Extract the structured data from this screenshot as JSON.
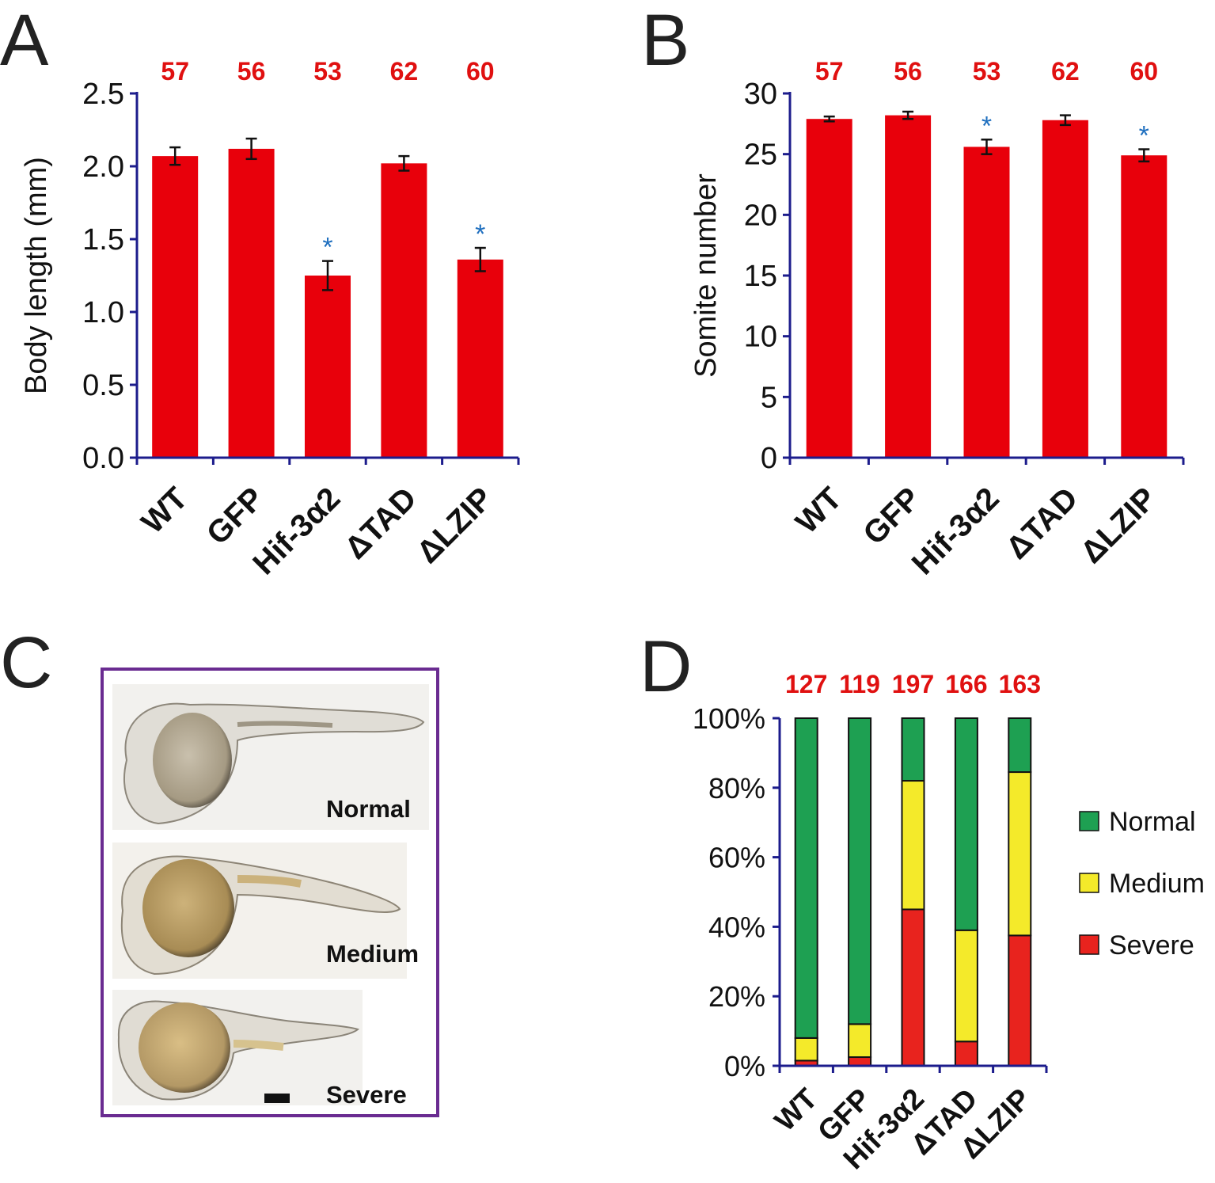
{
  "panels": {
    "a": "A",
    "b": "B",
    "c": "C",
    "d": "D"
  },
  "colors": {
    "bar": "#e8000b",
    "axis": "#1c1c8c",
    "star": "#1f6fbf",
    "n_label": "#e01010",
    "normal": "#1ea052",
    "medium": "#f4ea2a",
    "severe": "#e8231e",
    "frame": "#6a2c91"
  },
  "photo_labels": [
    "Normal",
    "Medium",
    "Severe"
  ],
  "chart_data": [
    {
      "panel": "A",
      "type": "bar",
      "categories": [
        "WT",
        "GFP",
        "Hif-3α2",
        "ΔTAD",
        "ΔLZIP"
      ],
      "values": [
        2.07,
        2.12,
        1.25,
        2.02,
        1.36
      ],
      "errors": [
        0.06,
        0.07,
        0.1,
        0.05,
        0.08
      ],
      "n_labels": [
        "57",
        "56",
        "53",
        "62",
        "60"
      ],
      "significant": [
        false,
        false,
        true,
        false,
        true
      ],
      "ylabel": "Body length (mm)",
      "ylim": [
        0,
        2.5
      ],
      "yticks": [
        "0.0",
        "0.5",
        "1.0",
        "1.5",
        "2.0",
        "2.5"
      ],
      "star": "*"
    },
    {
      "panel": "B",
      "type": "bar",
      "categories": [
        "WT",
        "GFP",
        "Hif-3α2",
        "ΔTAD",
        "ΔLZIP"
      ],
      "values": [
        27.9,
        28.2,
        25.6,
        27.8,
        24.9
      ],
      "errors": [
        0.2,
        0.3,
        0.6,
        0.4,
        0.5
      ],
      "n_labels": [
        "57",
        "56",
        "53",
        "62",
        "60"
      ],
      "significant": [
        false,
        false,
        true,
        false,
        true
      ],
      "ylabel": "Somite number",
      "ylim": [
        0,
        30
      ],
      "yticks": [
        "0",
        "5",
        "10",
        "15",
        "20",
        "25",
        "30"
      ],
      "star": "*"
    },
    {
      "panel": "D",
      "type": "bar",
      "stacked": true,
      "categories": [
        "WT",
        "GFP",
        "Hif-3α2",
        "ΔTAD",
        "ΔLZIP"
      ],
      "n_labels": [
        "127",
        "119",
        "197",
        "166",
        "163"
      ],
      "series": [
        {
          "name": "Severe",
          "values": [
            1.5,
            2.5,
            45,
            7,
            37.5
          ]
        },
        {
          "name": "Medium",
          "values": [
            6.5,
            9.5,
            37,
            32,
            47
          ]
        },
        {
          "name": "Normal",
          "values": [
            92,
            88,
            18,
            61,
            15.5
          ]
        }
      ],
      "legend_order": [
        "Normal",
        "Medium",
        "Severe"
      ],
      "legend": "right",
      "ylim": [
        0,
        100
      ],
      "yticks": [
        "0%",
        "20%",
        "40%",
        "60%",
        "80%",
        "100%"
      ]
    }
  ]
}
